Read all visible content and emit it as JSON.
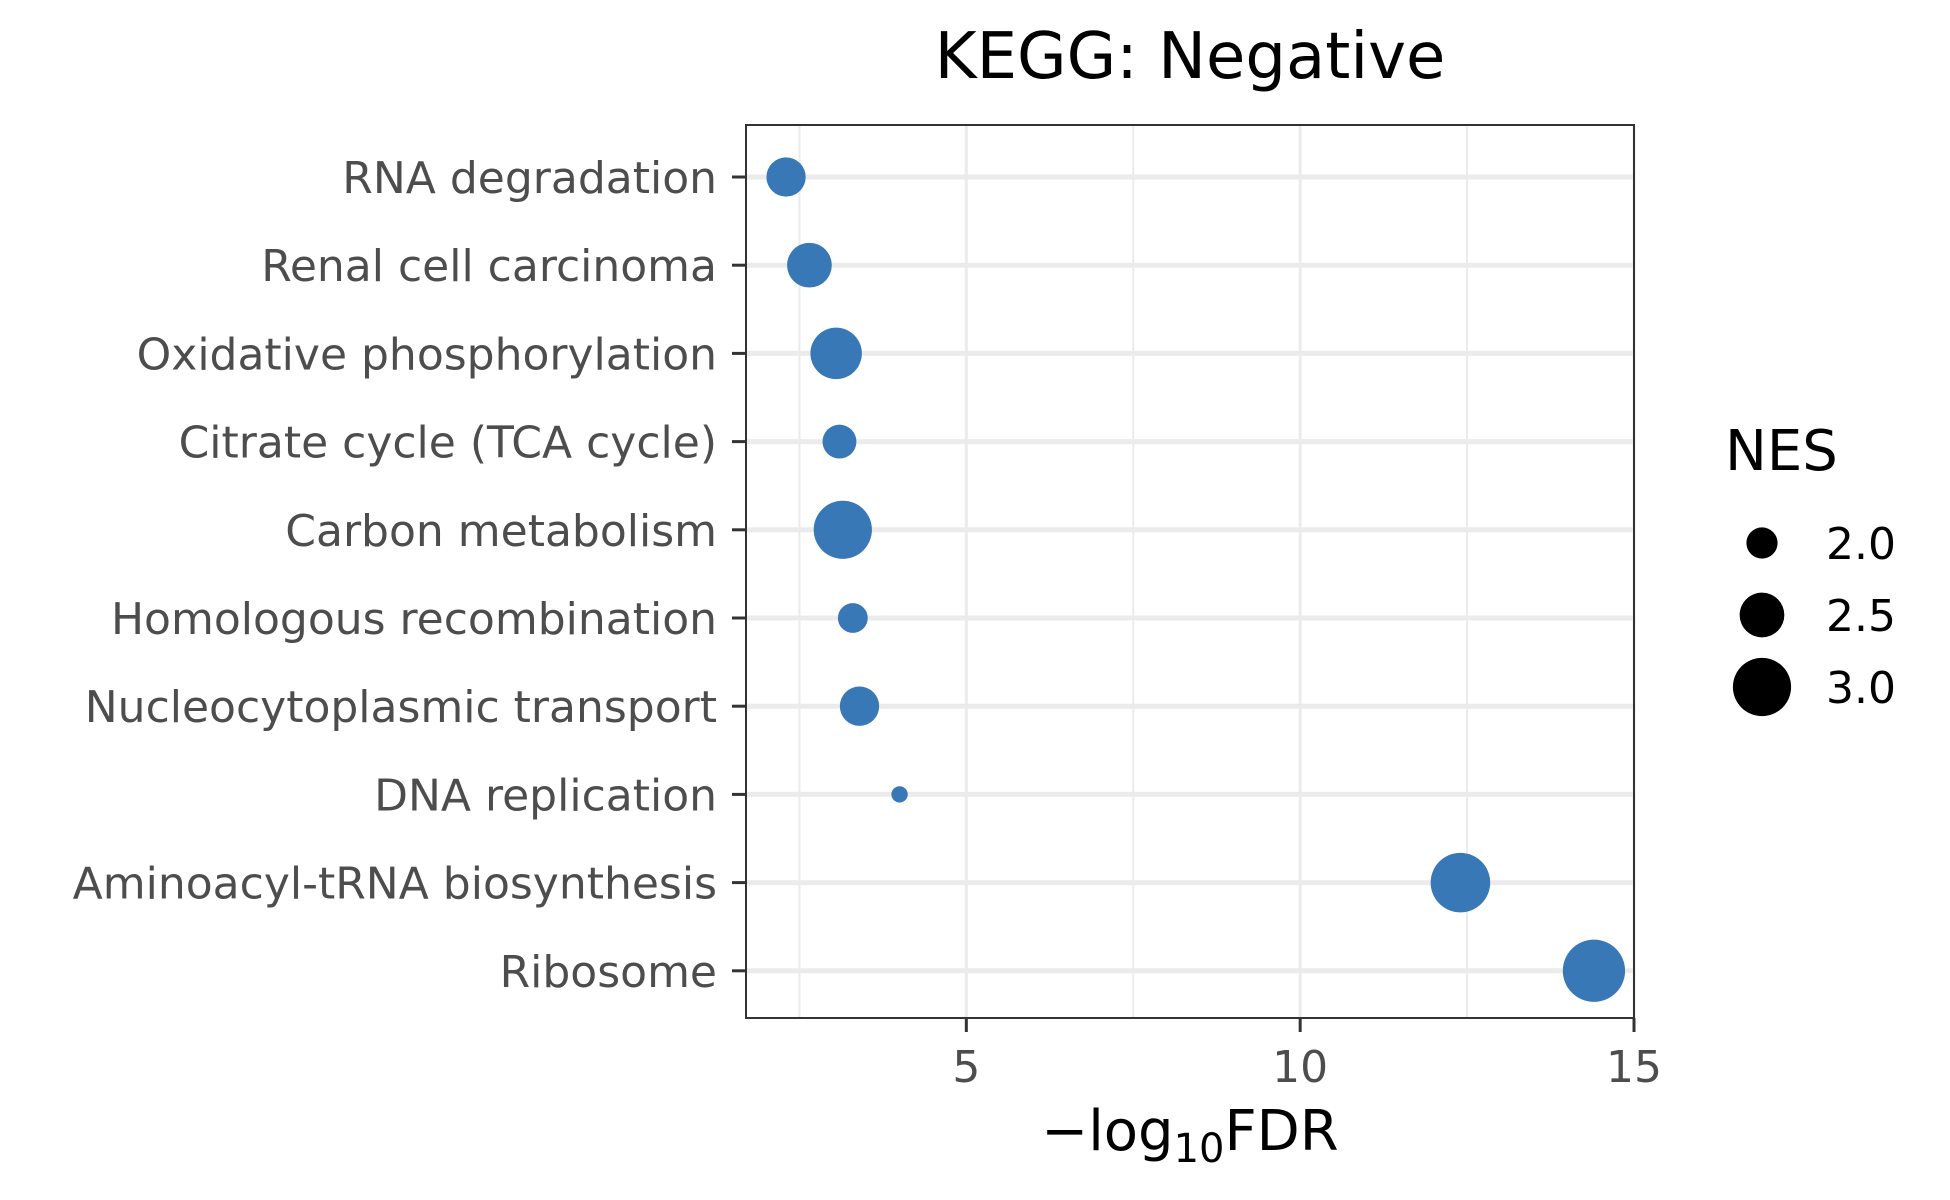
{
  "chart_data": {
    "type": "scatter",
    "title": "KEGG: Negative",
    "xlabel": {
      "prefix": "−log",
      "sub": "10",
      "suffix": "FDR"
    },
    "ylabel": "",
    "xlim": [
      1.7,
      15.0
    ],
    "xticks": [
      5,
      10,
      15
    ],
    "grid": true,
    "point_color": "#3878b7",
    "categories": [
      "RNA degradation",
      "Renal cell carcinoma",
      "Oxidative phosphorylation",
      "Citrate cycle (TCA cycle)",
      "Carbon metabolism",
      "Homologous recombination",
      "Nucleocytoplasmic transport",
      "DNA replication",
      "Aminoacyl-tRNA biosynthesis",
      "Ribosome"
    ],
    "x": [
      2.3,
      2.65,
      3.05,
      3.1,
      3.15,
      3.3,
      3.4,
      4.0,
      12.4,
      14.4
    ],
    "size": [
      2.3,
      2.5,
      2.75,
      2.1,
      3.0,
      1.95,
      2.3,
      1.45,
      3.05,
      3.15
    ],
    "legend": {
      "title": "NES",
      "position": "right",
      "items": [
        {
          "label": "2.0",
          "value": 2.0
        },
        {
          "label": "2.5",
          "value": 2.5
        },
        {
          "label": "3.0",
          "value": 3.0
        }
      ]
    }
  }
}
